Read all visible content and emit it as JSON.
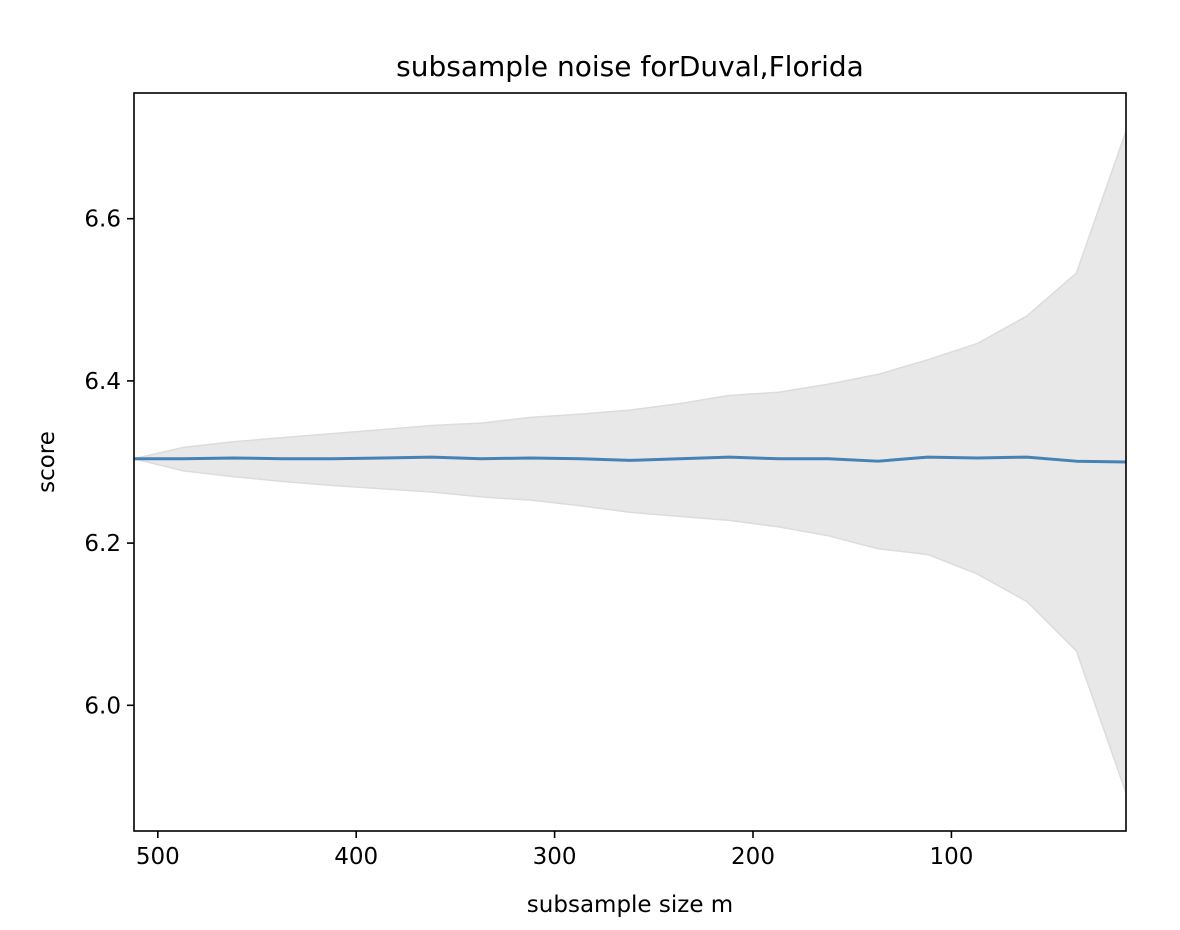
{
  "chart_data": {
    "type": "line",
    "title": "subsample noise forDuval,Florida",
    "xlabel": "subsample size m",
    "ylabel": "score",
    "xlim": [
      512,
      12
    ],
    "ylim": [
      5.845,
      6.755
    ],
    "x_inverted": true,
    "grid": false,
    "x_ticks": [
      500,
      400,
      300,
      200,
      100
    ],
    "x_tick_labels": [
      "500",
      "400",
      "300",
      "200",
      "100"
    ],
    "y_ticks": [
      6.0,
      6.2,
      6.4,
      6.6
    ],
    "y_tick_labels": [
      "6.0",
      "6.2",
      "6.4",
      "6.6"
    ],
    "x": [
      512,
      487,
      462,
      437,
      412,
      387,
      362,
      337,
      312,
      287,
      262,
      237,
      212,
      187,
      162,
      137,
      112,
      87,
      62,
      37,
      12
    ],
    "series": [
      {
        "values": [
          6.304,
          6.304,
          6.305,
          6.304,
          6.304,
          6.305,
          6.306,
          6.304,
          6.305,
          6.304,
          6.302,
          6.304,
          6.306,
          6.304,
          6.304,
          6.301,
          6.306,
          6.305,
          6.306,
          6.301,
          6.3
        ],
        "color": "#4682b4"
      }
    ],
    "band": {
      "upper": [
        6.304,
        6.318,
        6.325,
        6.33,
        6.335,
        6.34,
        6.345,
        6.348,
        6.355,
        6.359,
        6.364,
        6.372,
        6.382,
        6.386,
        6.396,
        6.408,
        6.426,
        6.446,
        6.48,
        6.533,
        6.708
      ],
      "lower": [
        6.304,
        6.289,
        6.282,
        6.276,
        6.271,
        6.267,
        6.263,
        6.257,
        6.253,
        6.246,
        6.238,
        6.233,
        6.228,
        6.22,
        6.209,
        6.193,
        6.186,
        6.162,
        6.128,
        6.067,
        5.892
      ],
      "fill_color": "#e8e8e8",
      "edge_color": "#dcdcdc"
    }
  }
}
